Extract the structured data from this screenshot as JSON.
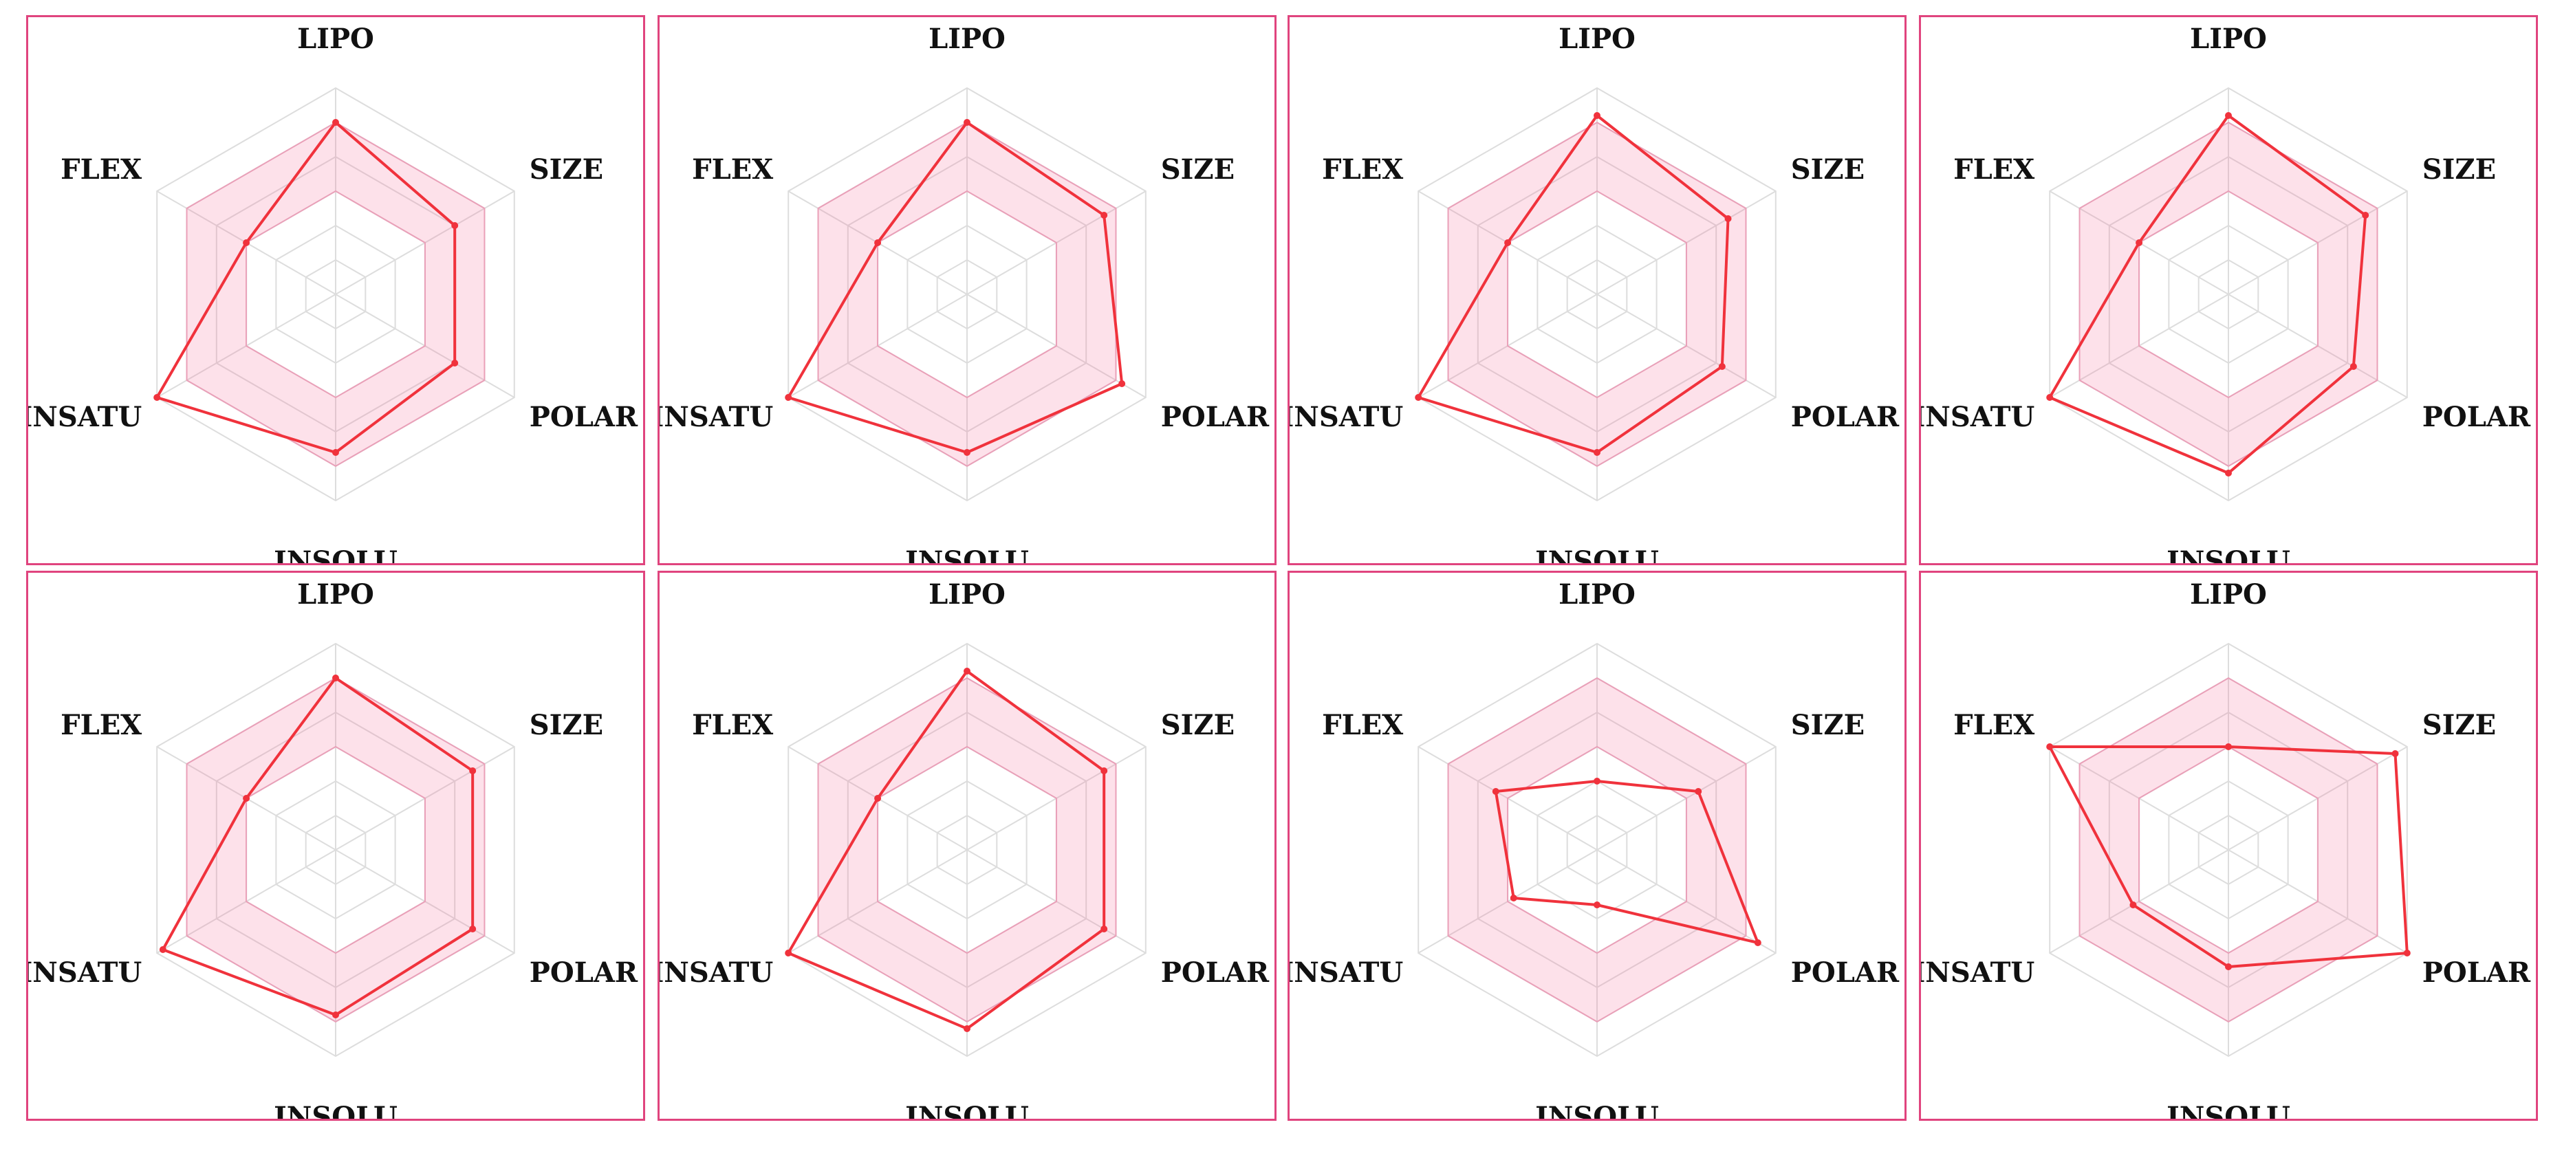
{
  "chart_data": [
    {
      "type": "radar",
      "axes": [
        "LIPO",
        "SIZE",
        "POLAR",
        "INSOLU",
        "INSATU",
        "FLEX"
      ],
      "range": [
        -2,
        1
      ],
      "optimal_range": {
        "inner": [
          -0.5,
          -0.5,
          -0.5,
          -0.5,
          -0.5,
          -0.5
        ],
        "outer": [
          0.5,
          0.5,
          0.5,
          0.5,
          0.5,
          0.5
        ]
      },
      "values": [
        0.5,
        0.0,
        0.0,
        0.3,
        1.0,
        -0.5
      ]
    },
    {
      "type": "radar",
      "axes": [
        "LIPO",
        "SIZE",
        "POLAR",
        "INSOLU",
        "INSATU",
        "FLEX"
      ],
      "range": [
        -2,
        1
      ],
      "optimal_range": {
        "inner": [
          -0.5,
          -0.5,
          -0.5,
          -0.5,
          -0.5,
          -0.5
        ],
        "outer": [
          0.5,
          0.5,
          0.5,
          0.5,
          0.5,
          0.5
        ]
      },
      "values": [
        0.5,
        0.3,
        0.6,
        0.3,
        1.0,
        -0.5
      ]
    },
    {
      "type": "radar",
      "axes": [
        "LIPO",
        "SIZE",
        "POLAR",
        "INSOLU",
        "INSATU",
        "FLEX"
      ],
      "range": [
        -2,
        1
      ],
      "optimal_range": {
        "inner": [
          -0.5,
          -0.5,
          -0.5,
          -0.5,
          -0.5,
          -0.5
        ],
        "outer": [
          0.5,
          0.5,
          0.5,
          0.5,
          0.5,
          0.5
        ]
      },
      "values": [
        0.6,
        0.2,
        0.1,
        0.3,
        1.0,
        -0.5
      ]
    },
    {
      "type": "radar",
      "axes": [
        "LIPO",
        "SIZE",
        "POLAR",
        "INSOLU",
        "INSATU",
        "FLEX"
      ],
      "range": [
        -2,
        1
      ],
      "optimal_range": {
        "inner": [
          -0.5,
          -0.5,
          -0.5,
          -0.5,
          -0.5,
          -0.5
        ],
        "outer": [
          0.5,
          0.5,
          0.5,
          0.5,
          0.5,
          0.5
        ]
      },
      "values": [
        0.6,
        0.3,
        0.1,
        0.6,
        1.0,
        -0.5
      ]
    },
    {
      "type": "radar",
      "axes": [
        "LIPO",
        "SIZE",
        "POLAR",
        "INSOLU",
        "INSATU",
        "FLEX"
      ],
      "range": [
        -2,
        1
      ],
      "optimal_range": {
        "inner": [
          -0.5,
          -0.5,
          -0.5,
          -0.5,
          -0.5,
          -0.5
        ],
        "outer": [
          0.5,
          0.5,
          0.5,
          0.5,
          0.5,
          0.5
        ]
      },
      "values": [
        0.5,
        0.3,
        0.3,
        0.4,
        0.9,
        -0.5
      ]
    },
    {
      "type": "radar",
      "axes": [
        "LIPO",
        "SIZE",
        "POLAR",
        "INSOLU",
        "INSATU",
        "FLEX"
      ],
      "range": [
        -2,
        1
      ],
      "optimal_range": {
        "inner": [
          -0.5,
          -0.5,
          -0.5,
          -0.5,
          -0.5,
          -0.5
        ],
        "outer": [
          0.5,
          0.5,
          0.5,
          0.5,
          0.5,
          0.5
        ]
      },
      "values": [
        0.6,
        0.3,
        0.3,
        0.6,
        1.0,
        -0.5
      ]
    },
    {
      "type": "radar",
      "axes": [
        "LIPO",
        "SIZE",
        "POLAR",
        "INSOLU",
        "INSATU",
        "FLEX"
      ],
      "range": [
        -2,
        1
      ],
      "optimal_range": {
        "inner": [
          -0.5,
          -0.5,
          -0.5,
          -0.5,
          -0.5,
          -0.5
        ],
        "outer": [
          0.5,
          0.5,
          0.5,
          0.5,
          0.5,
          0.5
        ]
      },
      "values": [
        -1.0,
        -0.3,
        0.7,
        -1.2,
        -0.6,
        -0.3
      ]
    },
    {
      "type": "radar",
      "axes": [
        "LIPO",
        "SIZE",
        "POLAR",
        "INSOLU",
        "INSATU",
        "FLEX"
      ],
      "range": [
        -2,
        1
      ],
      "optimal_range": {
        "inner": [
          -0.5,
          -0.5,
          -0.5,
          -0.5,
          -0.5,
          -0.5
        ],
        "outer": [
          0.5,
          0.5,
          0.5,
          0.5,
          0.5,
          0.5
        ]
      },
      "values": [
        -0.5,
        0.8,
        1.0,
        -0.3,
        -0.4,
        1.0
      ]
    }
  ]
}
